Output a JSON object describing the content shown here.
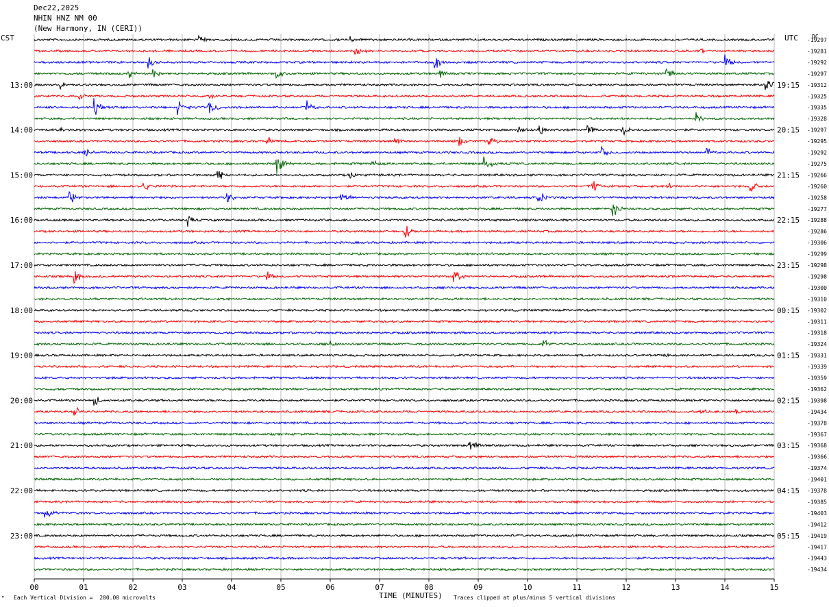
{
  "header": {
    "date": "Dec22,2025",
    "station": "NHIN HNZ NM 00",
    "location": "(New Harmony, IN (CERI))"
  },
  "labels": {
    "left_tz": "CST",
    "right_tz": "UTC",
    "dc": "DC",
    "xlabel": "TIME (MINUTES)",
    "division_note": "Each Vertical Division =  200.00 microvolts",
    "clip_note": "Traces clipped at plus/minus 5 vertical divisions",
    "corner_mark": "\""
  },
  "chart_data": {
    "type": "line",
    "title": "NHIN HNZ NM 00",
    "xlabel": "TIME (MINUTES)",
    "xlim": [
      0,
      15
    ],
    "x_ticks": [
      "00",
      "01",
      "02",
      "03",
      "04",
      "05",
      "06",
      "07",
      "08",
      "09",
      "10",
      "11",
      "12",
      "13",
      "14",
      "15"
    ],
    "left_hour_labels": [
      "13:00",
      "14:00",
      "15:00",
      "16:00",
      "17:00",
      "18:00",
      "19:00",
      "20:00",
      "21:00",
      "22:00",
      "23:00"
    ],
    "right_hour_labels": [
      "19:15",
      "20:15",
      "21:15",
      "22:15",
      "23:15",
      "00:15",
      "01:15",
      "02:15",
      "03:15",
      "04:15",
      "05:15"
    ],
    "trace_colors": [
      "#000000",
      "#ff0000",
      "#0000ff",
      "#006400"
    ],
    "dc_offsets": [
      "-19297",
      "-19281",
      "-19292",
      "-19297",
      "-19312",
      "-19325",
      "-19335",
      "-19328",
      "-19297",
      "-19295",
      "-19292",
      "-19275",
      "-19266",
      "-19260",
      "-19258",
      "-19277",
      "-19288",
      "-19286",
      "-19306",
      "-19299",
      "-19298",
      "-19298",
      "-19300",
      "-19310",
      "-19302",
      "-19311",
      "-19318",
      "-19324",
      "-19331",
      "-19339",
      "-19359",
      "-19362",
      "-19398",
      "-19434",
      "-19378",
      "-19367",
      "-19368",
      "-19366",
      "-19374",
      "-19401",
      "-19378",
      "-19385",
      "-19403",
      "-19412",
      "-19419",
      "-19417",
      "-19443",
      "-19434"
    ],
    "events": [
      {
        "trace": 0,
        "minute": 3.3,
        "amp": 8
      },
      {
        "trace": 0,
        "minute": 6.4,
        "amp": 6
      },
      {
        "trace": 1,
        "minute": 6.5,
        "amp": 10
      },
      {
        "trace": 1,
        "minute": 13.5,
        "amp": 4
      },
      {
        "trace": 2,
        "minute": 2.3,
        "amp": 8
      },
      {
        "trace": 2,
        "minute": 8.1,
        "amp": 10
      },
      {
        "trace": 2,
        "minute": 14.0,
        "amp": 10
      },
      {
        "trace": 3,
        "minute": 1.9,
        "amp": 7
      },
      {
        "trace": 3,
        "minute": 2.4,
        "amp": 7
      },
      {
        "trace": 3,
        "minute": 4.9,
        "amp": 8
      },
      {
        "trace": 3,
        "minute": 8.2,
        "amp": 7
      },
      {
        "trace": 3,
        "minute": 12.8,
        "amp": 8
      },
      {
        "trace": 4,
        "minute": 0.5,
        "amp": 8
      },
      {
        "trace": 4,
        "minute": 14.8,
        "amp": 16
      },
      {
        "trace": 5,
        "minute": 0.9,
        "amp": 6
      },
      {
        "trace": 5,
        "minute": 3.5,
        "amp": 6
      },
      {
        "trace": 6,
        "minute": 1.2,
        "amp": 12
      },
      {
        "trace": 6,
        "minute": 2.9,
        "amp": 12
      },
      {
        "trace": 6,
        "minute": 3.5,
        "amp": 16
      },
      {
        "trace": 6,
        "minute": 5.5,
        "amp": 10
      },
      {
        "trace": 7,
        "minute": 13.4,
        "amp": 8
      },
      {
        "trace": 8,
        "minute": 0.5,
        "amp": 6
      },
      {
        "trace": 8,
        "minute": 9.8,
        "amp": 7
      },
      {
        "trace": 8,
        "minute": 10.2,
        "amp": 9
      },
      {
        "trace": 8,
        "minute": 11.2,
        "amp": 8
      },
      {
        "trace": 8,
        "minute": 11.9,
        "amp": 10
      },
      {
        "trace": 9,
        "minute": 4.7,
        "amp": 7
      },
      {
        "trace": 9,
        "minute": 7.3,
        "amp": 7
      },
      {
        "trace": 9,
        "minute": 8.6,
        "amp": 8
      },
      {
        "trace": 9,
        "minute": 9.2,
        "amp": 10
      },
      {
        "trace": 10,
        "minute": 1.0,
        "amp": 8
      },
      {
        "trace": 10,
        "minute": 11.5,
        "amp": 10
      },
      {
        "trace": 10,
        "minute": 13.6,
        "amp": 8
      },
      {
        "trace": 11,
        "minute": 4.9,
        "amp": 18
      },
      {
        "trace": 11,
        "minute": 6.8,
        "amp": 7
      },
      {
        "trace": 11,
        "minute": 9.1,
        "amp": 12
      },
      {
        "trace": 12,
        "minute": 3.7,
        "amp": 10
      },
      {
        "trace": 12,
        "minute": 6.4,
        "amp": 6
      },
      {
        "trace": 13,
        "minute": 2.2,
        "amp": 8
      },
      {
        "trace": 13,
        "minute": 11.3,
        "amp": 12
      },
      {
        "trace": 13,
        "minute": 12.8,
        "amp": 7
      },
      {
        "trace": 13,
        "minute": 14.5,
        "amp": 10
      },
      {
        "trace": 14,
        "minute": 0.7,
        "amp": 10
      },
      {
        "trace": 14,
        "minute": 3.9,
        "amp": 9
      },
      {
        "trace": 14,
        "minute": 6.2,
        "amp": 14
      },
      {
        "trace": 14,
        "minute": 10.2,
        "amp": 10
      },
      {
        "trace": 15,
        "minute": 11.7,
        "amp": 12
      },
      {
        "trace": 16,
        "minute": 3.1,
        "amp": 8
      },
      {
        "trace": 17,
        "minute": 7.5,
        "amp": 10
      },
      {
        "trace": 21,
        "minute": 0.8,
        "amp": 10
      },
      {
        "trace": 21,
        "minute": 4.7,
        "amp": 8
      },
      {
        "trace": 21,
        "minute": 8.5,
        "amp": 10
      },
      {
        "trace": 27,
        "minute": 6.0,
        "amp": 8
      },
      {
        "trace": 27,
        "minute": 10.3,
        "amp": 8
      },
      {
        "trace": 28,
        "minute": 12.8,
        "amp": 4
      },
      {
        "trace": 32,
        "minute": 1.2,
        "amp": 8
      },
      {
        "trace": 33,
        "minute": 0.8,
        "amp": 8
      },
      {
        "trace": 33,
        "minute": 13.5,
        "amp": 5
      },
      {
        "trace": 33,
        "minute": 14.2,
        "amp": 6
      },
      {
        "trace": 36,
        "minute": 8.8,
        "amp": 10
      },
      {
        "trace": 42,
        "minute": 0.2,
        "amp": 12
      }
    ]
  }
}
